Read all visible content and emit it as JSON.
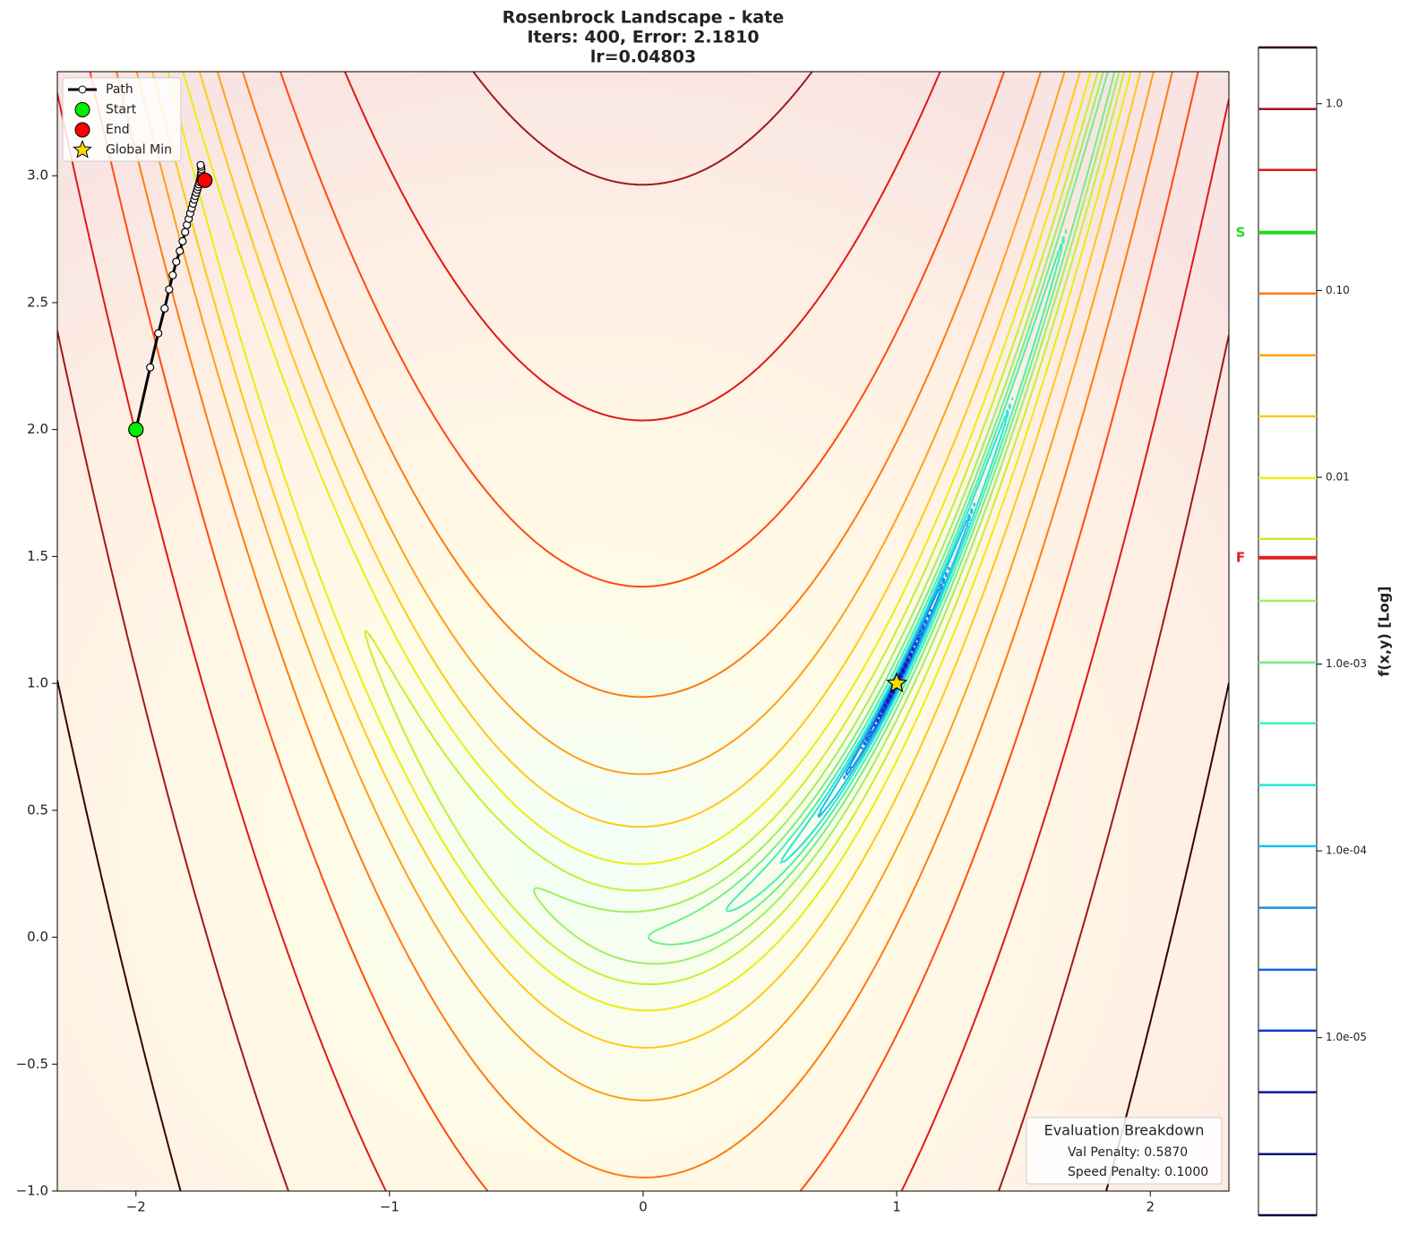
{
  "chart_data": {
    "type": "contour",
    "title": "Rosenbrock Landscape - kate",
    "subtitle": [
      "Iters: 400, Error: 2.1810",
      "lr=0.04803"
    ],
    "xlim": [
      -2.31,
      2.31
    ],
    "ylim": [
      -1.0,
      3.41
    ],
    "xticks": [
      {
        "value": -2,
        "label": "−2"
      },
      {
        "value": -1,
        "label": "−1"
      },
      0,
      1,
      2
    ],
    "yticks": [
      {
        "value": -1.0,
        "label": "−1.0"
      },
      {
        "value": -0.5,
        "label": "−0.5"
      },
      {
        "value": 0,
        "label": "0.0"
      },
      0.5,
      {
        "value": 1,
        "label": "1.0"
      },
      1.5,
      {
        "value": 2,
        "label": "2.0"
      },
      2.5,
      {
        "value": 3,
        "label": "3.0"
      }
    ],
    "legend": "upper left",
    "series": [
      {
        "name": "Path",
        "color": "#000000",
        "x": [
          -2.0,
          -1.944,
          -1.912,
          -1.887,
          -1.869,
          -1.855,
          -1.841,
          -1.827,
          -1.816,
          -1.806,
          -1.799,
          -1.792,
          -1.786,
          -1.78,
          -1.775,
          -1.77,
          -1.766,
          -1.762,
          -1.758,
          -1.755,
          -1.752,
          -1.749,
          -1.747,
          -1.745,
          -1.744,
          -1.743,
          -1.742,
          -1.742,
          -1.743,
          -1.745
        ],
        "y": [
          2.0,
          2.245,
          2.379,
          2.477,
          2.552,
          2.608,
          2.661,
          2.703,
          2.742,
          2.778,
          2.806,
          2.83,
          2.852,
          2.872,
          2.89,
          2.906,
          2.92,
          2.933,
          2.945,
          2.956,
          2.966,
          2.975,
          2.984,
          2.992,
          3.0,
          3.008,
          3.015,
          3.025,
          3.035,
          3.042
        ]
      },
      {
        "name": "Start",
        "color": "#00ee00",
        "x": [
          -2.0
        ],
        "y": [
          2.0
        ]
      },
      {
        "name": "End",
        "color": "#ff0000",
        "x": [
          -1.728
        ],
        "y": [
          2.982
        ]
      },
      {
        "name": "Global Min",
        "color": "#ffd700",
        "x": [
          1.0
        ],
        "y": [
          1.0
        ]
      }
    ],
    "annotation": {
      "title": "Evaluation Breakdown",
      "lines": [
        "Val Penalty: 0.5870",
        "Speed Penalty: 0.1000"
      ]
    },
    "colorbar": {
      "label": "f(x,y) [Log]",
      "log": true,
      "ylim": [
        1.12e-06,
        2.0
      ],
      "yticks": [
        {
          "value": 1.0,
          "label": "1.0"
        },
        {
          "value": 0.1,
          "label": "0.10"
        },
        0.01,
        {
          "value": 0.001,
          "label": "1.0e-03"
        },
        {
          "value": 0.0001,
          "label": "1.0e-04"
        },
        {
          "value": 1e-05,
          "label": "1.0e-05"
        }
      ],
      "levels": [
        2.0,
        0.936,
        0.442,
        0.204,
        0.0964,
        0.045,
        0.0212,
        0.0099,
        0.00468,
        0.00218,
        0.00102,
        0.000482,
        0.000225,
        0.000106,
        4.96e-05,
        2.31e-05,
        1.09e-05,
        5.1e-06,
        2.38e-06,
        1.12e-06
      ],
      "level_colors": [
        "#3a0000",
        "#a01818",
        "#e01818",
        "#ff4a10",
        "#ff7a10",
        "#ffa018",
        "#ffc818",
        "#eaee10",
        "#c4f030",
        "#9ef060",
        "#70f088",
        "#44f0b4",
        "#22e6d8",
        "#16bff0",
        "#1494e8",
        "#1264e0",
        "#1036d0",
        "#1016b0",
        "#101080",
        "#000040"
      ],
      "markers": [
        {
          "label": "S",
          "value": 0.204,
          "color": "#22dd22"
        },
        {
          "label": "F",
          "value": 0.00371,
          "color": "#dd2222"
        }
      ]
    }
  }
}
